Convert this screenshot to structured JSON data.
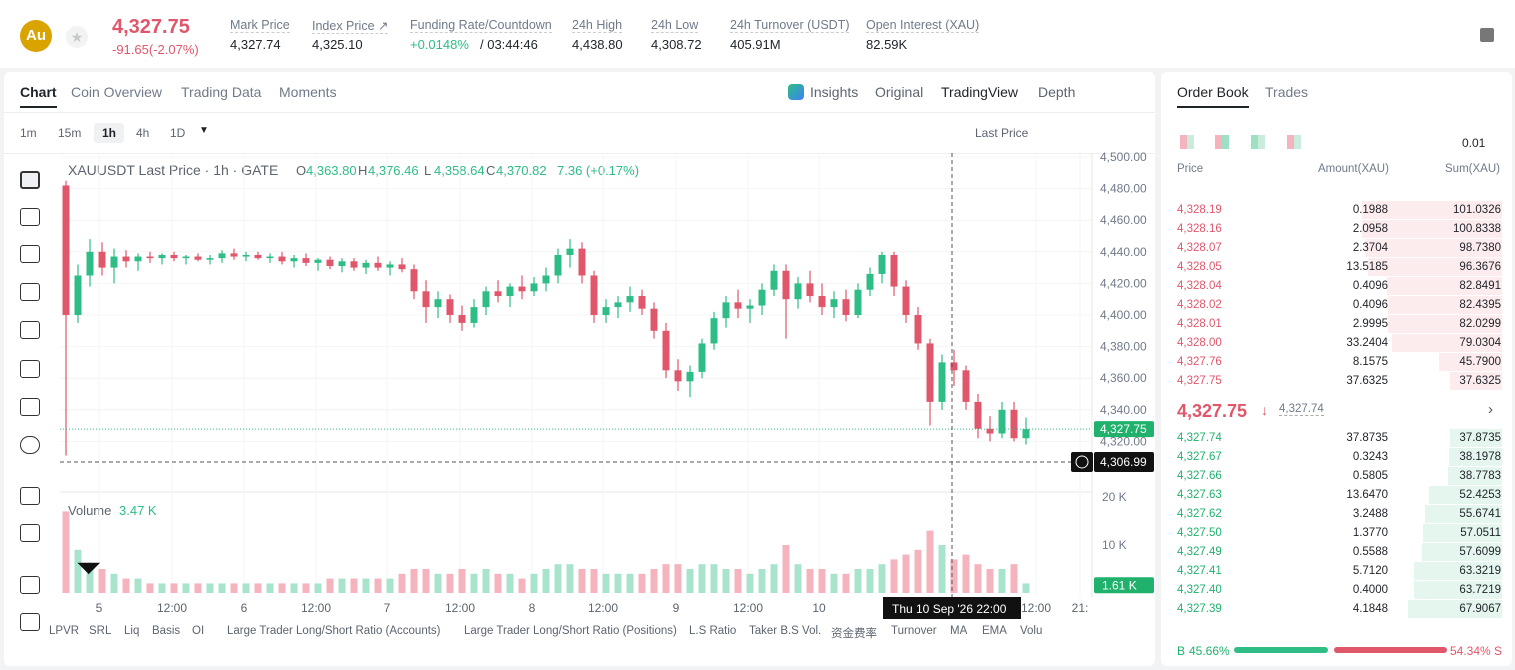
{
  "header": {
    "symbol_icon": "Au",
    "price": "4,327.75",
    "change": "-91.65(-2.07%)",
    "stats": [
      {
        "label": "Mark Price",
        "value": "4,327.74"
      },
      {
        "label": "Index Price ↗",
        "value": "4,325.10"
      },
      {
        "label": "Funding Rate/Countdown",
        "value": "+0.0148%",
        "extra": "/ 03:44:46"
      },
      {
        "label": "24h High",
        "value": "4,438.80"
      },
      {
        "label": "24h Low",
        "value": "4,308.72"
      },
      {
        "label": "24h Turnover (USDT)",
        "value": "405.91M"
      },
      {
        "label": "Open Interest (XAU)",
        "value": "82.59K"
      }
    ]
  },
  "tabs": [
    "Chart",
    "Coin Overview",
    "Trading Data",
    "Moments"
  ],
  "views": [
    "Insights",
    "Original",
    "TradingView",
    "Depth"
  ],
  "intervals": [
    "1m",
    "15m",
    "1h",
    "4h",
    "1D"
  ],
  "price_type": "Last Price",
  "chart": {
    "title": "XAUUSDT Last Price · 1h · GATE",
    "ohlc": [
      {
        "k": "O",
        "v": "4,363.80"
      },
      {
        "k": "H",
        "v": "4,376.46"
      },
      {
        "k": "L",
        "v": "4,358.64"
      },
      {
        "k": "C",
        "v": "4,370.82"
      }
    ],
    "change": "7.36 (+0.17%)",
    "volume_label": "Volume",
    "volume_value": "3.47 K",
    "yticks": [
      {
        "value": 4500,
        "label": "4,500.00"
      },
      {
        "value": 4480,
        "label": "4,480.00"
      },
      {
        "value": 4460,
        "label": "4,460.00"
      },
      {
        "value": 4440,
        "label": "4,440.00"
      },
      {
        "value": 4420,
        "label": "4,420.00"
      },
      {
        "value": 4400,
        "label": "4,400.00"
      },
      {
        "value": 4380,
        "label": "4,380.00"
      },
      {
        "value": 4360,
        "label": "4,360.00"
      },
      {
        "value": 4340,
        "label": "4,340.00"
      },
      {
        "value": 4320,
        "label": "4,320.00"
      }
    ],
    "vticks": [
      {
        "value": 20,
        "label": "20 K"
      },
      {
        "value": 10,
        "label": "10 K"
      }
    ],
    "x_labels": [
      "5",
      "12:00",
      "6",
      "12:00",
      "7",
      "12:00",
      "8",
      "12:00",
      "9",
      "12:00",
      "10",
      "12:00",
      "21:"
    ],
    "last_price": {
      "value": 4327.75,
      "label": "4,327.75"
    },
    "crosshair": {
      "price": {
        "value": 4306.99,
        "label": "4,306.99"
      },
      "time": "Thu 10 Sep '26  22:00"
    },
    "last_volume": {
      "value": 1.61,
      "label": "1.61 K"
    },
    "candles": [
      [
        4482,
        4485,
        4311,
        4400,
        17
      ],
      [
        4400,
        4432,
        4395,
        4425,
        9
      ],
      [
        4425,
        4448,
        4418,
        4440,
        6
      ],
      [
        4440,
        4446,
        4425,
        4430,
        5
      ],
      [
        4430,
        4442,
        4420,
        4437,
        4
      ],
      [
        4437,
        4441,
        4430,
        4434,
        3
      ],
      [
        4434,
        4439,
        4428,
        4437,
        3
      ],
      [
        4437,
        4440,
        4433,
        4436,
        2
      ],
      [
        4436,
        4439,
        4432,
        4438,
        2
      ],
      [
        4438,
        4440,
        4434,
        4436,
        2
      ],
      [
        4436,
        4438,
        4432,
        4437,
        2
      ],
      [
        4437,
        4439,
        4434,
        4435,
        2
      ],
      [
        4435,
        4438,
        4432,
        4436,
        2
      ],
      [
        4436,
        4441,
        4433,
        4439,
        2
      ],
      [
        4439,
        4442,
        4435,
        4437,
        2
      ],
      [
        4437,
        4440,
        4434,
        4438,
        2
      ],
      [
        4438,
        4440,
        4435,
        4436,
        2
      ],
      [
        4436,
        4439,
        4433,
        4437,
        2
      ],
      [
        4437,
        4440,
        4432,
        4434,
        2
      ],
      [
        4434,
        4438,
        4430,
        4436,
        2
      ],
      [
        4436,
        4439,
        4431,
        4433,
        2
      ],
      [
        4433,
        4436,
        4428,
        4435,
        2
      ],
      [
        4435,
        4437,
        4429,
        4431,
        3
      ],
      [
        4431,
        4436,
        4427,
        4434,
        3
      ],
      [
        4434,
        4436,
        4428,
        4430,
        3
      ],
      [
        4430,
        4435,
        4426,
        4433,
        3
      ],
      [
        4433,
        4437,
        4428,
        4430,
        3
      ],
      [
        4430,
        4434,
        4425,
        4432,
        3
      ],
      [
        4432,
        4436,
        4427,
        4429,
        4
      ],
      [
        4429,
        4432,
        4410,
        4415,
        5
      ],
      [
        4415,
        4422,
        4395,
        4405,
        5
      ],
      [
        4405,
        4415,
        4398,
        4410,
        4
      ],
      [
        4410,
        4413,
        4395,
        4400,
        4
      ],
      [
        4400,
        4406,
        4390,
        4395,
        5
      ],
      [
        4395,
        4410,
        4392,
        4405,
        4
      ],
      [
        4405,
        4418,
        4400,
        4415,
        5
      ],
      [
        4415,
        4422,
        4408,
        4412,
        4
      ],
      [
        4412,
        4420,
        4405,
        4418,
        4
      ],
      [
        4418,
        4425,
        4410,
        4415,
        3
      ],
      [
        4415,
        4424,
        4412,
        4420,
        4
      ],
      [
        4420,
        4430,
        4415,
        4425,
        5
      ],
      [
        4425,
        4442,
        4420,
        4438,
        6
      ],
      [
        4438,
        4448,
        4430,
        4442,
        6
      ],
      [
        4442,
        4446,
        4420,
        4425,
        5
      ],
      [
        4425,
        4428,
        4395,
        4400,
        5
      ],
      [
        4400,
        4410,
        4395,
        4405,
        4
      ],
      [
        4405,
        4412,
        4398,
        4408,
        4
      ],
      [
        4408,
        4418,
        4402,
        4412,
        4
      ],
      [
        4412,
        4416,
        4400,
        4404,
        4
      ],
      [
        4404,
        4408,
        4385,
        4390,
        5
      ],
      [
        4390,
        4395,
        4360,
        4365,
        6
      ],
      [
        4365,
        4372,
        4352,
        4358,
        6
      ],
      [
        4358,
        4368,
        4348,
        4364,
        5
      ],
      [
        4364,
        4385,
        4360,
        4382,
        6
      ],
      [
        4382,
        4402,
        4378,
        4398,
        6
      ],
      [
        4398,
        4412,
        4392,
        4408,
        5
      ],
      [
        4408,
        4416,
        4398,
        4404,
        5
      ],
      [
        4404,
        4410,
        4395,
        4406,
        4
      ],
      [
        4406,
        4420,
        4400,
        4416,
        5
      ],
      [
        4416,
        4432,
        4412,
        4428,
        6
      ],
      [
        4428,
        4432,
        4385,
        4410,
        10
      ],
      [
        4410,
        4424,
        4404,
        4420,
        6
      ],
      [
        4420,
        4428,
        4408,
        4412,
        5
      ],
      [
        4412,
        4420,
        4400,
        4405,
        5
      ],
      [
        4405,
        4415,
        4398,
        4410,
        4
      ],
      [
        4410,
        4416,
        4396,
        4400,
        4
      ],
      [
        4400,
        4420,
        4398,
        4416,
        5
      ],
      [
        4416,
        4430,
        4412,
        4426,
        5
      ],
      [
        4426,
        4440,
        4420,
        4438,
        6
      ],
      [
        4438,
        4440,
        4412,
        4418,
        7
      ],
      [
        4418,
        4422,
        4395,
        4400,
        8
      ],
      [
        4400,
        4405,
        4378,
        4382,
        9
      ],
      [
        4382,
        4385,
        4330,
        4345,
        13
      ],
      [
        4345,
        4375,
        4340,
        4370,
        10
      ],
      [
        4370,
        4378,
        4355,
        4365,
        7
      ],
      [
        4365,
        4368,
        4340,
        4345,
        8
      ],
      [
        4345,
        4350,
        4322,
        4328,
        6
      ],
      [
        4328,
        4336,
        4320,
        4325,
        5
      ],
      [
        4325,
        4345,
        4322,
        4340,
        5
      ],
      [
        4340,
        4345,
        4320,
        4322,
        6
      ],
      [
        4322,
        4335,
        4318,
        4327.75,
        2
      ]
    ]
  },
  "indicators": [
    "LPVR",
    "SRL",
    "Liq",
    "Basis",
    "OI",
    "Large Trader Long/Short Ratio (Accounts)",
    "Large Trader Long/Short Ratio (Positions)",
    "L.S Ratio",
    "Taker B.S Vol.",
    "资金费率",
    "Turnover",
    "MA",
    "EMA",
    "Volu"
  ],
  "order_book": {
    "tabs": [
      "Order Book",
      "Trades"
    ],
    "precision": "0.01",
    "columns": [
      "Price",
      "Amount(XAU)",
      "Sum(XAU)"
    ],
    "asks": [
      [
        "4,328.19",
        "0.1988",
        "101.0326"
      ],
      [
        "4,328.16",
        "2.0958",
        "100.8338"
      ],
      [
        "4,328.07",
        "2.3704",
        "98.7380"
      ],
      [
        "4,328.05",
        "13.5185",
        "96.3676"
      ],
      [
        "4,328.04",
        "0.4096",
        "82.8491"
      ],
      [
        "4,328.02",
        "0.4096",
        "82.4395"
      ],
      [
        "4,328.01",
        "2.9995",
        "82.0299"
      ],
      [
        "4,328.00",
        "33.2404",
        "79.0304"
      ],
      [
        "4,327.76",
        "8.1575",
        "45.7900"
      ],
      [
        "4,327.75",
        "37.6325",
        "37.6325"
      ]
    ],
    "mid": {
      "price": "4,327.75",
      "mark": "4,327.74"
    },
    "bids": [
      [
        "4,327.74",
        "37.8735",
        "37.8735"
      ],
      [
        "4,327.67",
        "0.3243",
        "38.1978"
      ],
      [
        "4,327.66",
        "0.5805",
        "38.7783"
      ],
      [
        "4,327.63",
        "13.6470",
        "52.4253"
      ],
      [
        "4,327.62",
        "3.2488",
        "55.6741"
      ],
      [
        "4,327.50",
        "1.3770",
        "57.0511"
      ],
      [
        "4,327.49",
        "0.5588",
        "57.6099"
      ],
      [
        "4,327.41",
        "5.7120",
        "63.3219"
      ],
      [
        "4,327.40",
        "0.4000",
        "63.7219"
      ],
      [
        "4,327.39",
        "4.1848",
        "67.9067"
      ]
    ],
    "ratio": {
      "buy_label": "B",
      "buy": {
        "value": 45.66,
        "label": "45.66%"
      },
      "sell": {
        "value": 54.34,
        "label": "54.34%"
      },
      "sell_label": "S"
    }
  }
}
